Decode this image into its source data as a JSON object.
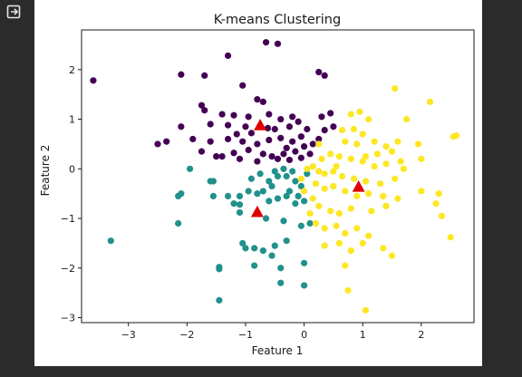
{
  "toolbar": {
    "exit_icon": "exit-fullscreen-icon"
  },
  "colors": {
    "page_bg": "#2b2b2b",
    "cluster_0": "#440154",
    "cluster_1": "#21918c",
    "cluster_2": "#fde725",
    "centroid": "#e00000"
  },
  "chart_data": {
    "type": "scatter",
    "title": "K-means Clustering",
    "xlabel": "Feature 1",
    "ylabel": "Feature 2",
    "xlim": [
      -3.8,
      2.9
    ],
    "ylim": [
      -3.1,
      2.8
    ],
    "xticks": [
      -3,
      -2,
      -1,
      0,
      1,
      2
    ],
    "yticks": [
      -3,
      -2,
      -1,
      0,
      1,
      2
    ],
    "tick_labels_x": [
      "−3",
      "−2",
      "−1",
      "0",
      "1",
      "2"
    ],
    "tick_labels_y": [
      "−3",
      "−2",
      "−1",
      "0",
      "1",
      "2"
    ],
    "grid": false,
    "legend": "none",
    "series": [
      {
        "color": "#440154",
        "points": [
          [
            -3.6,
            1.78
          ],
          [
            -0.65,
            2.55
          ],
          [
            -0.45,
            2.52
          ],
          [
            -2.1,
            1.9
          ],
          [
            -1.7,
            1.88
          ],
          [
            -1.3,
            2.28
          ],
          [
            -1.05,
            1.68
          ],
          [
            0.25,
            1.95
          ],
          [
            0.35,
            1.88
          ],
          [
            -0.8,
            1.4
          ],
          [
            -0.7,
            1.35
          ],
          [
            -1.75,
            1.28
          ],
          [
            -1.7,
            1.18
          ],
          [
            -1.4,
            1.1
          ],
          [
            -1.2,
            1.08
          ],
          [
            -0.95,
            1.05
          ],
          [
            -0.6,
            1.1
          ],
          [
            -0.4,
            1.0
          ],
          [
            -0.2,
            1.05
          ],
          [
            -0.1,
            0.95
          ],
          [
            0.3,
            1.05
          ],
          [
            0.45,
            1.12
          ],
          [
            -2.1,
            0.85
          ],
          [
            -1.6,
            0.9
          ],
          [
            -1.3,
            0.88
          ],
          [
            -1.0,
            0.85
          ],
          [
            -0.5,
            0.8
          ],
          [
            -0.25,
            0.85
          ],
          [
            0.05,
            0.8
          ],
          [
            -1.6,
            0.55
          ],
          [
            -1.3,
            0.6
          ],
          [
            -1.05,
            0.55
          ],
          [
            -0.8,
            0.5
          ],
          [
            -0.6,
            0.58
          ],
          [
            -0.4,
            0.62
          ],
          [
            -0.2,
            0.55
          ],
          [
            0.0,
            0.45
          ],
          [
            0.15,
            0.5
          ],
          [
            -2.5,
            0.5
          ],
          [
            -2.35,
            0.55
          ],
          [
            -1.9,
            0.6
          ],
          [
            -1.75,
            0.35
          ],
          [
            -1.5,
            0.25
          ],
          [
            -1.2,
            0.32
          ],
          [
            -0.95,
            0.38
          ],
          [
            -0.7,
            0.3
          ],
          [
            -0.55,
            0.25
          ],
          [
            -0.35,
            0.3
          ],
          [
            -0.15,
            0.35
          ],
          [
            -1.4,
            0.25
          ],
          [
            -1.1,
            0.2
          ],
          [
            -0.8,
            0.15
          ],
          [
            -0.45,
            0.2
          ],
          [
            -0.25,
            0.18
          ],
          [
            -0.05,
            0.22
          ],
          [
            0.25,
            0.6
          ],
          [
            -0.05,
            0.65
          ],
          [
            0.35,
            0.78
          ],
          [
            -0.3,
            0.42
          ],
          [
            -1.15,
            0.7
          ],
          [
            -0.9,
            0.72
          ],
          [
            -0.62,
            0.82
          ],
          [
            0.1,
            0.3
          ],
          [
            0.5,
            0.85
          ]
        ]
      },
      {
        "color": "#21918c",
        "points": [
          [
            -3.3,
            -1.45
          ],
          [
            -2.15,
            -1.1
          ],
          [
            -2.15,
            -0.55
          ],
          [
            -2.1,
            -0.5
          ],
          [
            -1.95,
            0.0
          ],
          [
            -1.6,
            -0.25
          ],
          [
            -1.55,
            -0.55
          ],
          [
            -1.3,
            -0.55
          ],
          [
            -1.1,
            -0.55
          ],
          [
            -1.1,
            -0.72
          ],
          [
            -1.1,
            -0.88
          ],
          [
            -0.95,
            -0.45
          ],
          [
            -0.9,
            -0.2
          ],
          [
            -0.75,
            -0.1
          ],
          [
            -0.5,
            -0.05
          ],
          [
            -0.35,
            0.0
          ],
          [
            -0.3,
            -0.15
          ],
          [
            -0.15,
            -0.25
          ],
          [
            -0.05,
            -0.35
          ],
          [
            -0.55,
            -0.35
          ],
          [
            -0.45,
            -0.6
          ],
          [
            -0.25,
            -0.45
          ],
          [
            -0.1,
            -0.55
          ],
          [
            0.0,
            -0.65
          ],
          [
            -0.6,
            -0.65
          ],
          [
            -0.8,
            -0.5
          ],
          [
            -0.3,
            -0.55
          ],
          [
            -1.05,
            -1.5
          ],
          [
            -1.0,
            -1.6
          ],
          [
            -0.85,
            -1.6
          ],
          [
            -0.7,
            -1.65
          ],
          [
            -0.5,
            -1.55
          ],
          [
            -0.3,
            -1.45
          ],
          [
            -0.55,
            -1.75
          ],
          [
            -0.4,
            -2.0
          ],
          [
            -0.85,
            -1.95
          ],
          [
            -1.45,
            -1.98
          ],
          [
            -1.45,
            -2.65
          ],
          [
            -1.45,
            -2.02
          ],
          [
            -0.4,
            -2.3
          ],
          [
            0.0,
            -2.35
          ],
          [
            0.0,
            -1.9
          ],
          [
            -0.05,
            -1.15
          ],
          [
            0.1,
            -1.1
          ],
          [
            -0.35,
            -1.05
          ],
          [
            -0.15,
            -0.7
          ],
          [
            -0.6,
            -0.25
          ],
          [
            -0.45,
            -0.15
          ],
          [
            -0.2,
            -0.05
          ],
          [
            0.05,
            -0.1
          ],
          [
            -0.7,
            -0.45
          ],
          [
            -1.2,
            -0.7
          ],
          [
            -0.65,
            -1.0
          ],
          [
            -1.55,
            -0.25
          ]
        ]
      },
      {
        "color": "#fde725",
        "points": [
          [
            1.55,
            1.62
          ],
          [
            2.15,
            1.35
          ],
          [
            1.75,
            1.0
          ],
          [
            2.55,
            0.65
          ],
          [
            2.6,
            0.67
          ],
          [
            1.1,
            1.0
          ],
          [
            0.8,
            1.1
          ],
          [
            0.65,
            0.78
          ],
          [
            0.85,
            0.8
          ],
          [
            1.0,
            0.7
          ],
          [
            1.2,
            0.55
          ],
          [
            1.4,
            0.45
          ],
          [
            1.6,
            0.55
          ],
          [
            0.7,
            0.55
          ],
          [
            0.9,
            0.5
          ],
          [
            1.05,
            0.25
          ],
          [
            1.25,
            0.3
          ],
          [
            1.5,
            0.35
          ],
          [
            0.25,
            0.5
          ],
          [
            0.3,
            0.2
          ],
          [
            0.45,
            0.3
          ],
          [
            0.6,
            0.25
          ],
          [
            0.8,
            0.2
          ],
          [
            1.0,
            0.15
          ],
          [
            1.2,
            0.05
          ],
          [
            1.4,
            0.1
          ],
          [
            1.65,
            0.15
          ],
          [
            0.05,
            0.0
          ],
          [
            0.15,
            0.05
          ],
          [
            0.25,
            -0.05
          ],
          [
            0.35,
            -0.1
          ],
          [
            0.5,
            -0.05
          ],
          [
            0.65,
            -0.15
          ],
          [
            0.85,
            -0.2
          ],
          [
            1.05,
            -0.25
          ],
          [
            1.3,
            -0.3
          ],
          [
            1.55,
            -0.2
          ],
          [
            1.7,
            0.0
          ],
          [
            0.2,
            -0.3
          ],
          [
            0.35,
            -0.4
          ],
          [
            0.5,
            -0.35
          ],
          [
            0.7,
            -0.45
          ],
          [
            0.9,
            -0.55
          ],
          [
            1.1,
            -0.5
          ],
          [
            1.35,
            -0.55
          ],
          [
            1.6,
            -0.6
          ],
          [
            2.0,
            -0.45
          ],
          [
            2.3,
            -0.5
          ],
          [
            2.25,
            -0.7
          ],
          [
            0.1,
            -0.9
          ],
          [
            0.25,
            -0.75
          ],
          [
            0.45,
            -0.85
          ],
          [
            0.6,
            -0.9
          ],
          [
            0.8,
            -0.8
          ],
          [
            1.15,
            -0.85
          ],
          [
            1.4,
            -0.75
          ],
          [
            0.2,
            -1.1
          ],
          [
            0.35,
            -1.2
          ],
          [
            0.55,
            -1.15
          ],
          [
            0.7,
            -1.3
          ],
          [
            0.9,
            -1.2
          ],
          [
            1.1,
            -1.35
          ],
          [
            0.35,
            -1.55
          ],
          [
            0.6,
            -1.5
          ],
          [
            0.8,
            -1.65
          ],
          [
            1.0,
            -1.5
          ],
          [
            1.35,
            -1.6
          ],
          [
            1.5,
            -1.75
          ],
          [
            0.7,
            -1.95
          ],
          [
            2.5,
            -1.38
          ],
          [
            2.35,
            -0.95
          ],
          [
            0.75,
            -2.45
          ],
          [
            1.05,
            -2.85
          ],
          [
            0.0,
            -0.45
          ],
          [
            0.15,
            -0.6
          ],
          [
            -0.05,
            -0.2
          ],
          [
            0.55,
            0.05
          ],
          [
            1.95,
            0.5
          ],
          [
            2.0,
            0.2
          ],
          [
            0.95,
            1.15
          ]
        ]
      }
    ],
    "centroids": {
      "color": "#e00000",
      "points": [
        [
          -0.75,
          0.88
        ],
        [
          0.93,
          -0.36
        ],
        [
          -0.8,
          -0.87
        ]
      ]
    }
  }
}
